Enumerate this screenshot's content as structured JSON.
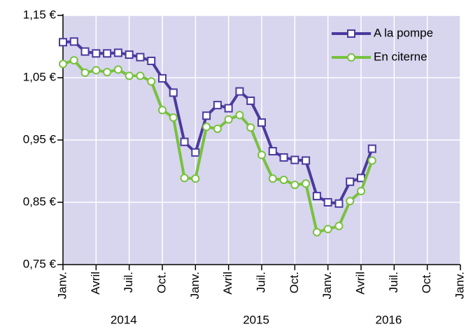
{
  "chart_data": {
    "type": "line",
    "categories": [
      "Janv.",
      null,
      null,
      "Avril",
      null,
      null,
      "Juil.",
      null,
      null,
      "Oct.",
      null,
      null,
      "Janv.",
      null,
      null,
      "Avril",
      null,
      null,
      "Juil.",
      null,
      null,
      "Oct.",
      null,
      null,
      "Janv.",
      null,
      null,
      "Avril",
      null,
      null,
      "Juil.",
      null,
      null,
      "Oct.",
      null,
      null,
      "Janv."
    ],
    "year_labels": [
      "2014",
      "2015",
      "2016"
    ],
    "series": [
      {
        "name": "A la pompe",
        "color": "#4a3a9e",
        "marker": "square",
        "values": [
          1.107,
          1.108,
          1.092,
          1.089,
          1.089,
          1.09,
          1.087,
          1.083,
          1.077,
          1.049,
          1.026,
          0.947,
          0.93,
          0.989,
          1.006,
          1.001,
          1.028,
          1.013,
          0.978,
          0.932,
          0.922,
          0.918,
          0.917,
          0.86,
          0.85,
          0.848,
          0.883,
          0.889,
          0.936,
          null,
          null,
          null,
          null,
          null,
          null,
          null,
          null
        ]
      },
      {
        "name": "En citerne",
        "color": "#78c13f",
        "marker": "circle",
        "values": [
          1.072,
          1.078,
          1.058,
          1.062,
          1.059,
          1.063,
          1.053,
          1.053,
          1.044,
          0.998,
          0.986,
          0.889,
          0.888,
          0.971,
          0.968,
          0.983,
          0.99,
          0.97,
          0.926,
          0.888,
          0.886,
          0.878,
          0.88,
          0.802,
          0.807,
          0.812,
          0.852,
          0.868,
          0.917,
          null,
          null,
          null,
          null,
          null,
          null,
          null,
          null
        ]
      }
    ],
    "ylim": [
      0.75,
      1.15
    ],
    "yticks": [
      {
        "value": 0.75,
        "label": "0,75 €"
      },
      {
        "value": 0.85,
        "label": "0,85 €"
      },
      {
        "value": 0.95,
        "label": "0,95 €"
      },
      {
        "value": 1.05,
        "label": "1,05 €"
      },
      {
        "value": 1.15,
        "label": "1,15 €"
      }
    ],
    "grid": true,
    "legend": "top-right",
    "background": "#d8d5ee"
  }
}
